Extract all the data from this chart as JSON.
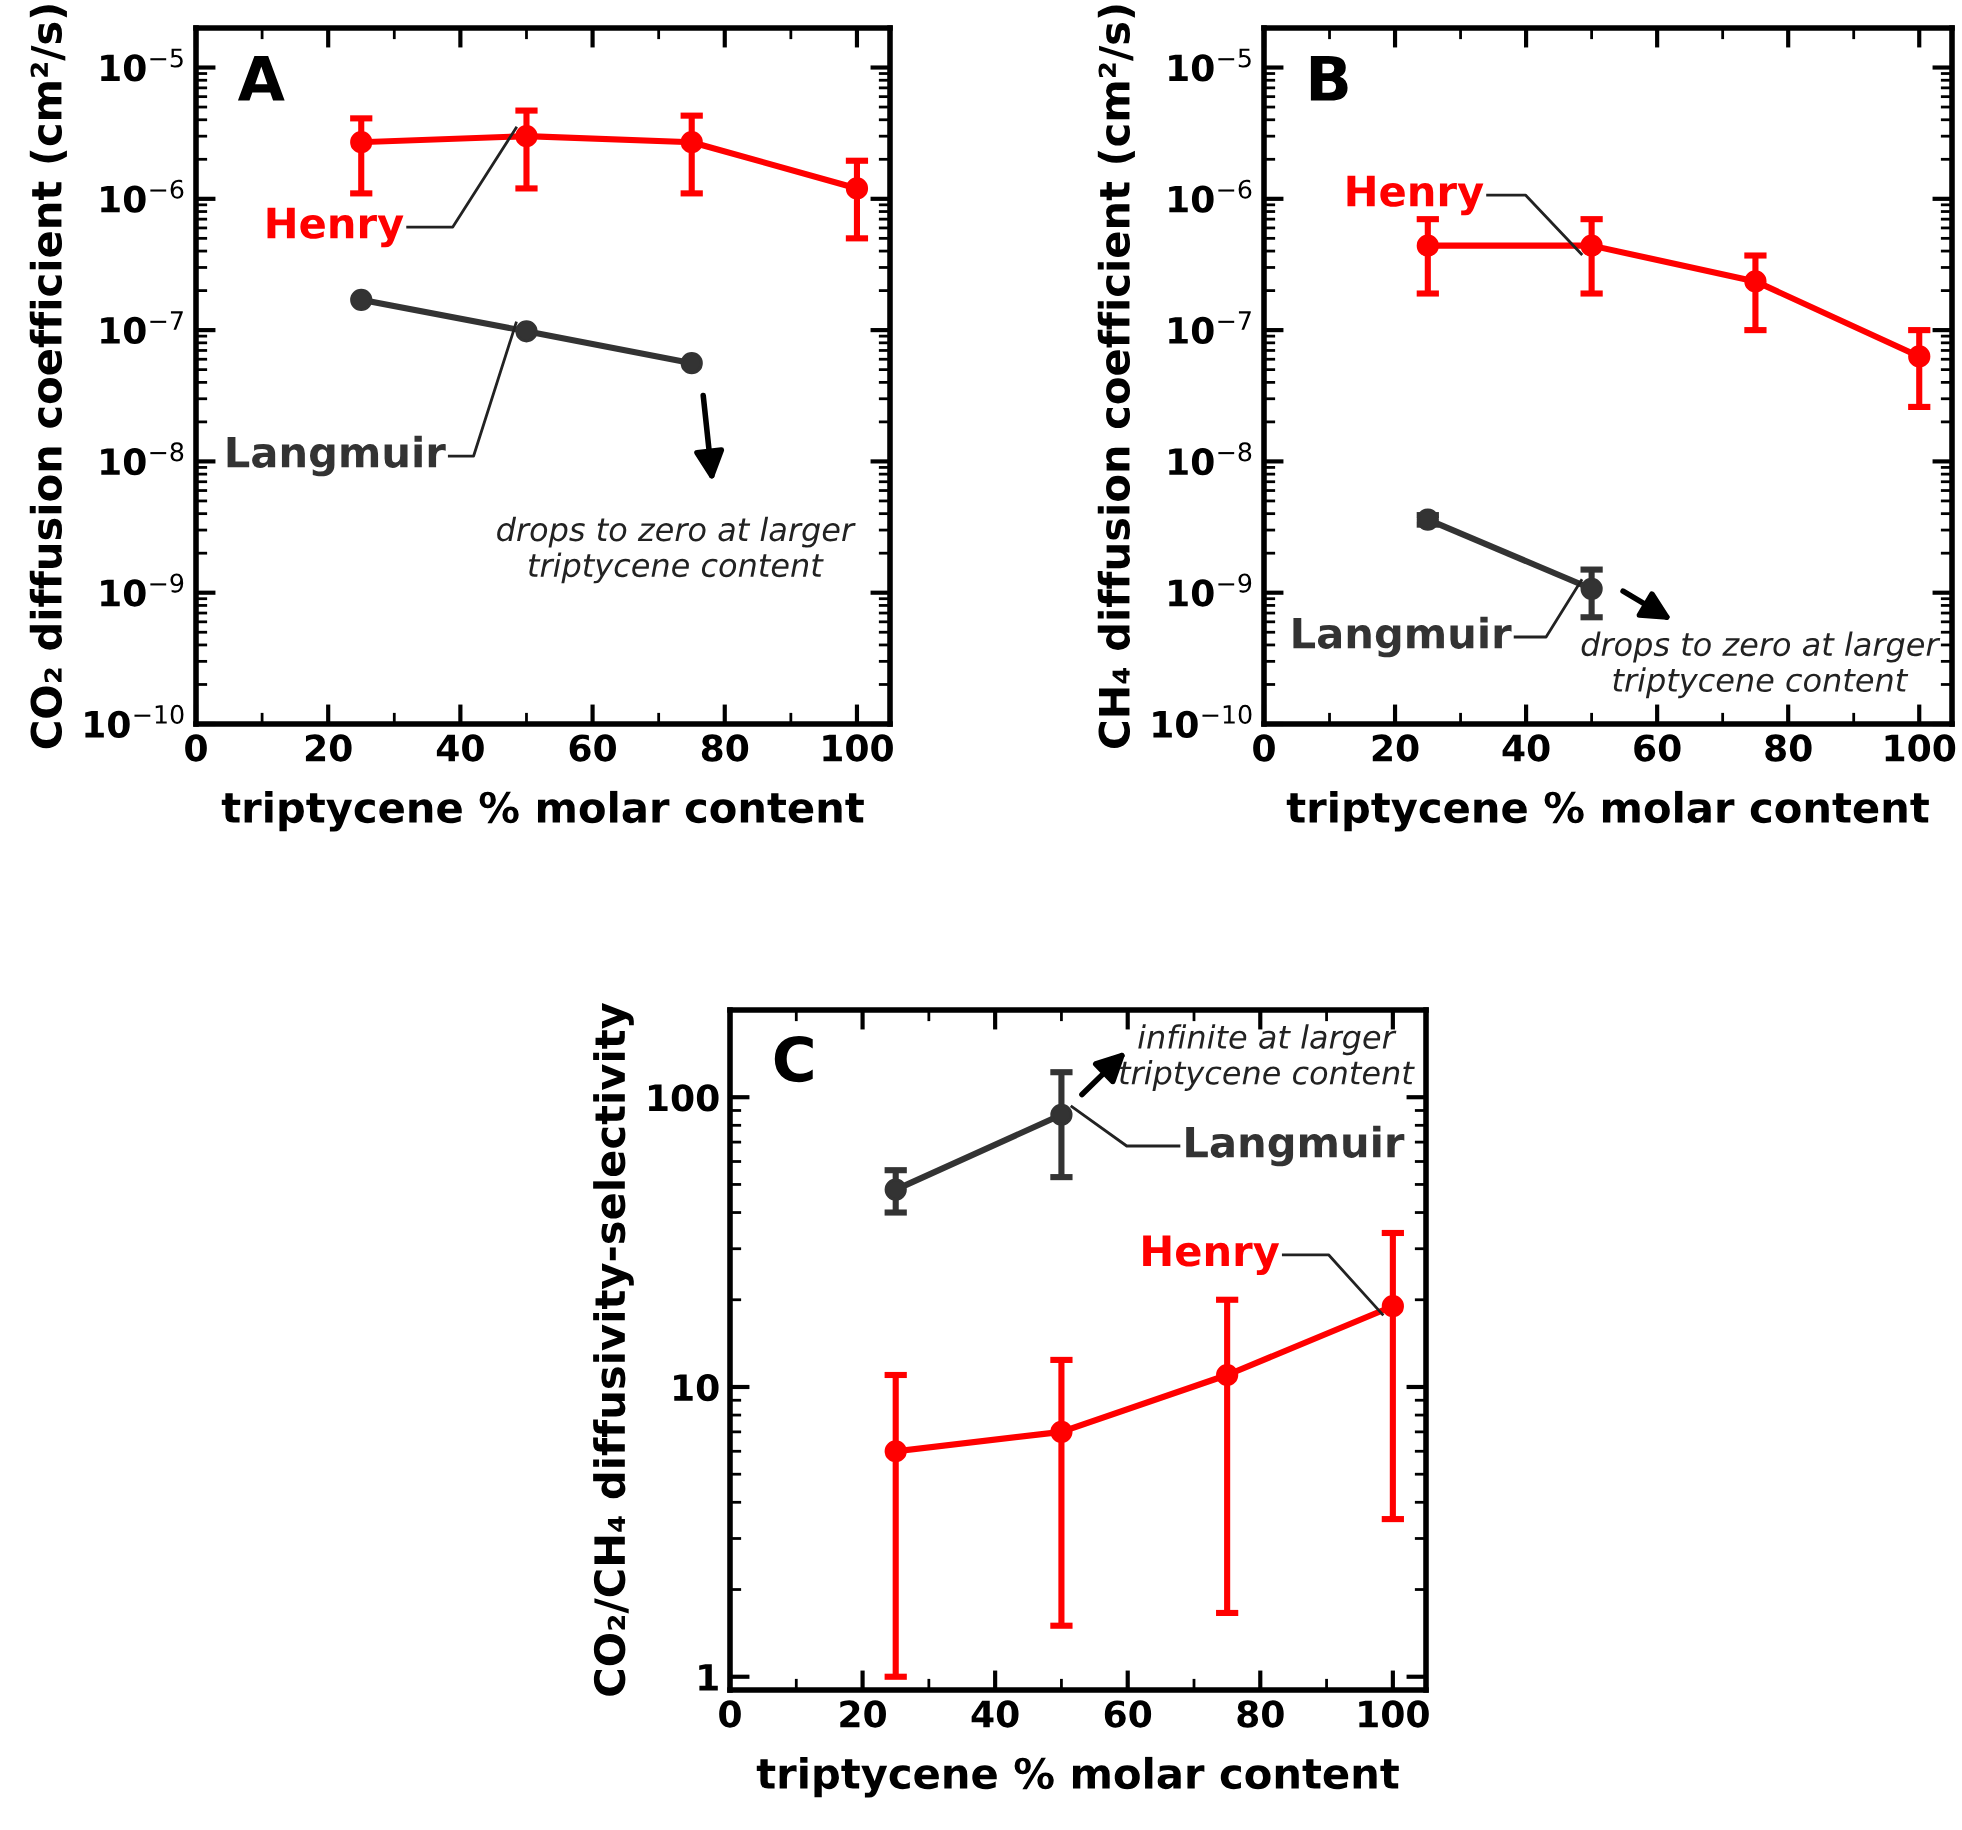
{
  "chart_data": [
    {
      "type": "line",
      "title": "A",
      "xlabel": "triptycene % molar content",
      "ylabel": "CO₂ diffusion coefficient (cm²/s)",
      "log": "y",
      "grid": false,
      "legend": false,
      "marker": "circle",
      "line_style": "solid",
      "x": [
        25,
        50,
        75,
        100
      ],
      "xlim": [
        0,
        105
      ],
      "xticks": [
        0,
        20,
        40,
        60,
        80,
        100
      ],
      "ylim": [
        1e-10,
        2e-05
      ],
      "yticks": [
        {
          "value": 1e-10,
          "label": "10$^{−10}$"
        },
        {
          "value": 1e-09,
          "label": "10$^{−9}$"
        },
        {
          "value": 1e-08,
          "label": "10$^{−8}$"
        },
        {
          "value": 1e-07,
          "label": "10$^{−7}$"
        },
        {
          "value": 1e-06,
          "label": "10$^{−6}$"
        },
        {
          "value": 1e-05,
          "label": "10$^{−5}$"
        }
      ],
      "series": [
        {
          "name": "Henry",
          "color": "#ff0000",
          "values": [
            2.7e-06,
            3e-06,
            2.7e-06,
            1.2e-06
          ],
          "errors": [
            [
              1.1e-06,
              4.1e-06
            ],
            [
              1.2e-06,
              4.7e-06
            ],
            [
              1.1e-06,
              4.3e-06
            ],
            [
              5e-07,
              1.95e-06
            ]
          ]
        },
        {
          "name": "Langmuir",
          "color": "#333333",
          "x": [
            25,
            50,
            75
          ],
          "values": [
            1.7e-07,
            9.8e-08,
            5.6e-08
          ]
        }
      ],
      "annotations": [
        "drops to zero at larger\ntriptycene content"
      ]
    },
    {
      "type": "line",
      "title": "B",
      "xlabel": "triptycene % molar content",
      "ylabel": "CH₄ diffusion coefficient (cm²/s)",
      "log": "y",
      "grid": false,
      "legend": false,
      "marker": "circle",
      "line_style": "solid",
      "x": [
        25,
        50,
        75,
        100
      ],
      "xlim": [
        0,
        105
      ],
      "xticks": [
        0,
        20,
        40,
        60,
        80,
        100
      ],
      "ylim": [
        1e-10,
        2e-05
      ],
      "yticks": [
        {
          "value": 1e-10,
          "label": "10$^{−10}$"
        },
        {
          "value": 1e-09,
          "label": "10$^{−9}$"
        },
        {
          "value": 1e-08,
          "label": "10$^{−8}$"
        },
        {
          "value": 1e-07,
          "label": "10$^{−7}$"
        },
        {
          "value": 1e-06,
          "label": "10$^{−6}$"
        },
        {
          "value": 1e-05,
          "label": "10$^{−5}$"
        }
      ],
      "series": [
        {
          "name": "Henry",
          "color": "#ff0000",
          "values": [
            4.4e-07,
            4.4e-07,
            2.35e-07,
            6.3e-08
          ],
          "errors": [
            [
              1.9e-07,
              7e-07
            ],
            [
              1.9e-07,
              7e-07
            ],
            [
              1e-07,
              3.7e-07
            ],
            [
              2.6e-08,
              1e-07
            ]
          ]
        },
        {
          "name": "Langmuir",
          "color": "#333333",
          "x": [
            25,
            50
          ],
          "values": [
            3.6e-09,
            1.07e-09
          ],
          "errors": [
            [
              3.3e-09,
              3.9e-09
            ],
            [
              6.5e-10,
              1.5e-09
            ]
          ]
        }
      ],
      "annotations": [
        "drops to zero at larger\ntriptycene content"
      ]
    },
    {
      "type": "line",
      "title": "C",
      "xlabel": "triptycene % molar content",
      "ylabel": "CO₂/CH₄ diffusivity-selectivity",
      "log": "y",
      "grid": false,
      "legend": false,
      "marker": "circle",
      "line_style": "solid",
      "x": [
        25,
        50,
        75,
        100
      ],
      "xlim": [
        0,
        105
      ],
      "xticks": [
        0,
        20,
        40,
        60,
        80,
        100
      ],
      "ylim": [
        0.9,
        200
      ],
      "yticks": [
        1,
        10,
        100
      ],
      "series": [
        {
          "name": "Henry",
          "color": "#ff0000",
          "values": [
            6,
            7,
            11,
            19
          ],
          "errors": [
            [
              1,
              11
            ],
            [
              1.5,
              12.4
            ],
            [
              1.66,
              20
            ],
            [
              3.5,
              34
            ]
          ]
        },
        {
          "name": "Langmuir",
          "color": "#333333",
          "x": [
            25,
            50
          ],
          "values": [
            48,
            87
          ],
          "errors": [
            [
              40,
              56
            ],
            [
              53,
              122
            ]
          ]
        }
      ],
      "annotations": [
        "infinite at larger\ntriptycene content"
      ]
    }
  ]
}
